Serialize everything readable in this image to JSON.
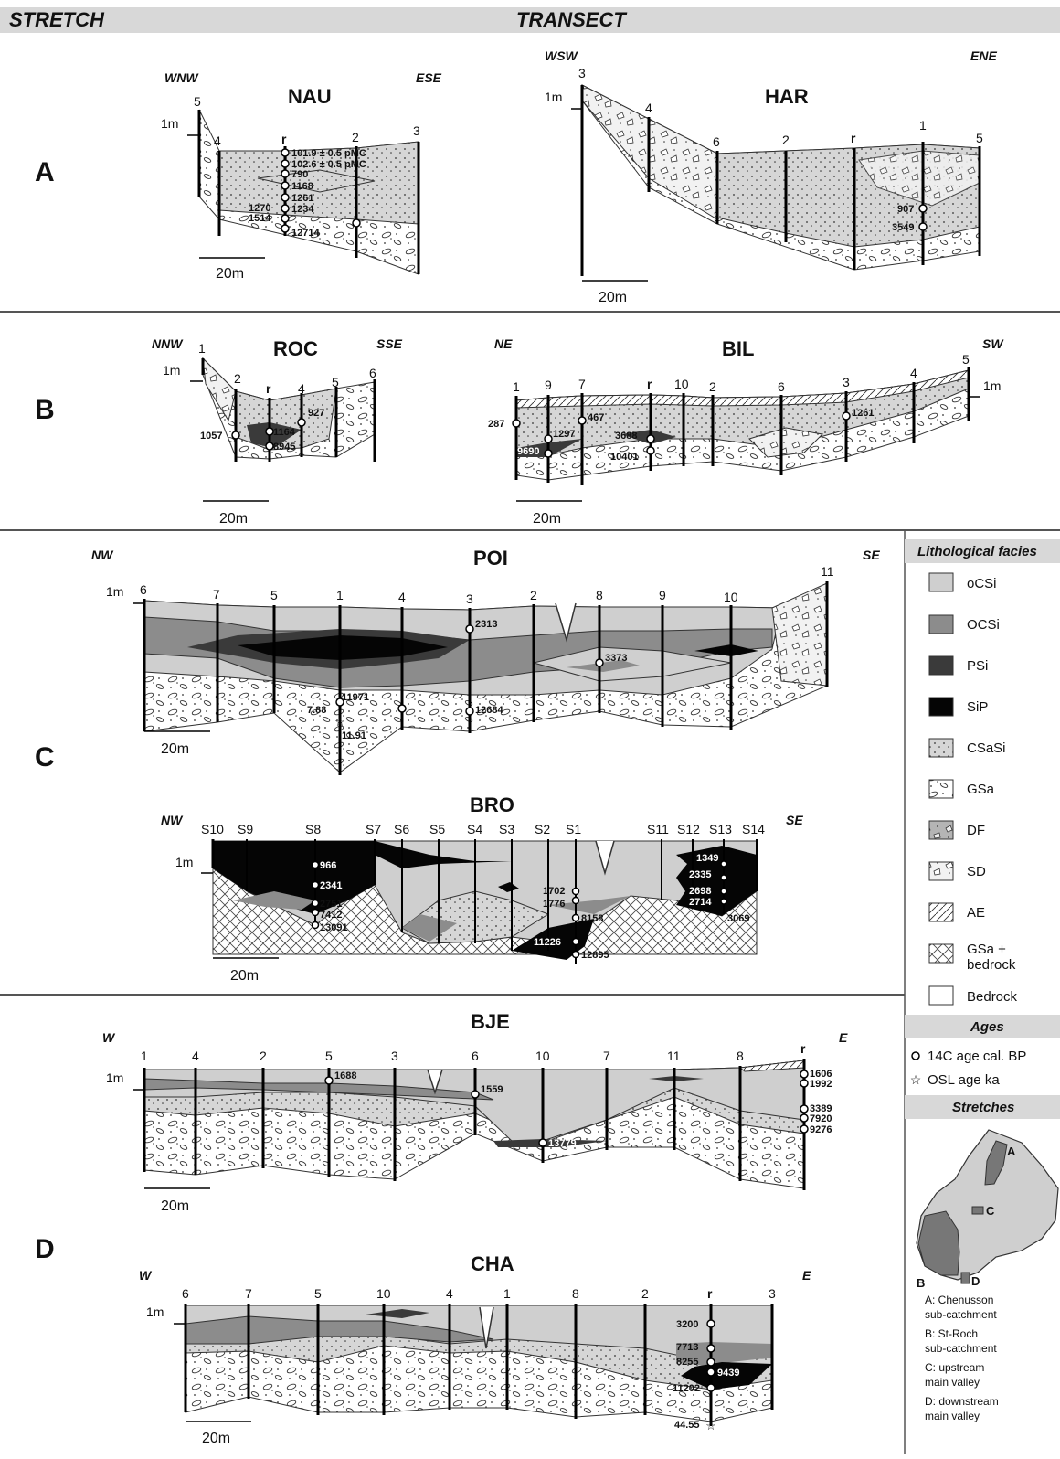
{
  "header": {
    "left": "STRETCH",
    "center": "TRANSECT"
  },
  "rows": {
    "a": "A",
    "b": "B",
    "c": "C",
    "d": "D"
  },
  "common": {
    "height_scale": "1m",
    "length_scale": "20m",
    "r": "r"
  },
  "transects": {
    "nau": {
      "title": "NAU",
      "dir_left": "WNW",
      "dir_right": "ESE",
      "boreholes": [
        "5",
        "4",
        "r",
        "2",
        "3"
      ],
      "ages": [
        "101.9 ± 0.5 pMC",
        "102.6 ± 0.5 pMC",
        "790",
        "1168",
        "1261",
        "1270",
        "1234",
        "1514",
        "12714"
      ]
    },
    "har": {
      "title": "HAR",
      "dir_left": "WSW",
      "dir_right": "ENE",
      "boreholes": [
        "3",
        "4",
        "6",
        "2",
        "r",
        "1",
        "5"
      ],
      "ages": [
        "907",
        "3549"
      ]
    },
    "roc": {
      "title": "ROC",
      "dir_left": "NNW",
      "dir_right": "SSE",
      "boreholes": [
        "1",
        "2",
        "r",
        "4",
        "5",
        "6"
      ],
      "ages": [
        "927",
        "1057",
        "1164",
        "8945"
      ]
    },
    "bil": {
      "title": "BIL",
      "dir_left": "NE",
      "dir_right": "SW",
      "boreholes": [
        "1",
        "9",
        "7",
        "r",
        "10",
        "2",
        "6",
        "3",
        "4",
        "5"
      ],
      "ages": [
        "287",
        "467",
        "1297",
        "9690",
        "3688",
        "10401",
        "1261"
      ]
    },
    "poi": {
      "title": "POI",
      "dir_left": "NW",
      "dir_right": "SE",
      "boreholes": [
        "6",
        "7",
        "5",
        "1",
        "4",
        "3",
        "2",
        "8",
        "9",
        "10",
        "11"
      ],
      "ages": [
        "2313",
        "3373",
        "11971",
        "7.88",
        "12684",
        "11.91"
      ]
    },
    "bro": {
      "title": "BRO",
      "dir_left": "NW",
      "dir_right": "SE",
      "boreholes": [
        "S10",
        "S9",
        "S8",
        "S7",
        "S6",
        "S5",
        "S4",
        "S3",
        "S2",
        "S1",
        "S11",
        "S12",
        "S13",
        "S14"
      ],
      "ages": [
        "966",
        "2341",
        "2751",
        "7412",
        "13091",
        "1702",
        "1776",
        "8158",
        "11226",
        "12895",
        "1349",
        "2335",
        "2698",
        "2714",
        "3069"
      ]
    },
    "bje": {
      "title": "BJE",
      "dir_left": "W",
      "dir_right": "E",
      "boreholes": [
        "1",
        "4",
        "2",
        "5",
        "3",
        "6",
        "10",
        "7",
        "11",
        "8",
        "r"
      ],
      "ages": [
        "1688",
        "1559",
        "13779",
        "1606",
        "1992",
        "3389",
        "7920",
        "9276"
      ]
    },
    "cha": {
      "title": "CHA",
      "dir_left": "W",
      "dir_right": "E",
      "boreholes": [
        "6",
        "7",
        "5",
        "10",
        "4",
        "1",
        "8",
        "2",
        "r",
        "3"
      ],
      "ages": [
        "3200",
        "7713",
        "8255",
        "9439",
        "11202",
        "44.55"
      ]
    }
  },
  "legend": {
    "facies_title": "Lithological facies",
    "facies": [
      {
        "label": "oCSi",
        "color": "#cfcfcf"
      },
      {
        "label": "OCSi",
        "color": "#8c8c8c"
      },
      {
        "label": "PSi",
        "color": "#3a3a3a"
      },
      {
        "label": "SiP",
        "color": "#050505"
      },
      {
        "label": "CSaSi",
        "color": "#d6d6d6"
      },
      {
        "label": "GSa",
        "color": "#ffffff"
      },
      {
        "label": "DF",
        "color": "#b4b4b4"
      },
      {
        "label": "SD",
        "color": "#f2f2f2"
      },
      {
        "label": "AE",
        "color": "#ffffff"
      },
      {
        "label": "GSa +",
        "label2": "bedrock",
        "color": "#ffffff"
      },
      {
        "label": "Bedrock",
        "color": "#ffffff"
      }
    ],
    "ages_title": "Ages",
    "age_types": [
      "14C age cal. BP",
      "OSL age ka"
    ],
    "stretches_title": "Stretches",
    "map_labels": [
      "A",
      "B",
      "C",
      "D"
    ],
    "stretches": [
      "A: Chenusson",
      "sub-catchment",
      "B: St-Roch",
      "sub-catchment",
      "C: upstream",
      "main valley",
      "D: downstream",
      "main valley"
    ]
  }
}
